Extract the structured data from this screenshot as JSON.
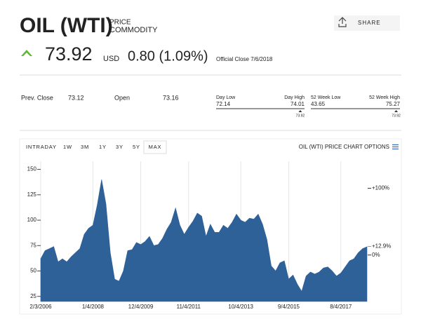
{
  "header": {
    "title": "OIL (WTI)",
    "label1": "PRICE",
    "label2": "COMMODITY",
    "share": "SHARE"
  },
  "quote": {
    "price": "73.92",
    "currency": "USD",
    "change": "0.80 (1.09%)",
    "close_note": "Official Close 7/6/2018"
  },
  "stats": {
    "prev_close_label": "Prev. Close",
    "prev_close": "73.12",
    "open_label": "Open",
    "open": "73.16",
    "day_range": {
      "low_label": "Day Low",
      "high_label": "Day High",
      "low": 72.14,
      "high": 74.01,
      "current": 73.92
    },
    "week52_range": {
      "low_label": "52 Week Low",
      "high_label": "52 Week High",
      "low": 43.65,
      "high": 75.27,
      "current": 73.92
    }
  },
  "tabs": {
    "items": [
      "INTRADAY",
      "1W",
      "3M",
      "1Y",
      "3Y",
      "5Y",
      "MAX"
    ],
    "selected": 6,
    "options": "OIL (WTI) PRICE CHART OPTIONS"
  },
  "chart_data": {
    "type": "area",
    "color": "#2f6199",
    "grid": true,
    "categories": [
      "2/3/2006",
      null,
      null,
      null,
      null,
      null,
      null,
      null,
      null,
      null,
      null,
      null,
      "1/4/2008",
      null,
      null,
      null,
      null,
      null,
      null,
      null,
      null,
      null,
      null,
      "12/4/2009",
      null,
      null,
      null,
      null,
      null,
      null,
      null,
      null,
      null,
      null,
      "11/4/2011",
      null,
      null,
      null,
      null,
      null,
      null,
      null,
      null,
      null,
      null,
      null,
      "10/4/2013",
      null,
      null,
      null,
      null,
      null,
      null,
      null,
      null,
      null,
      null,
      "9/4/2015",
      null,
      null,
      null,
      null,
      null,
      null,
      null,
      null,
      null,
      null,
      null,
      "8/4/2017",
      null,
      null,
      null,
      null,
      null,
      null
    ],
    "values": [
      62,
      70,
      72,
      74,
      59,
      62,
      59,
      64,
      68,
      72,
      86,
      92,
      95,
      115,
      140,
      116,
      68,
      42,
      40,
      50,
      70,
      71,
      78,
      76,
      79,
      84,
      75,
      76,
      82,
      91,
      98,
      112,
      95,
      86,
      93,
      99,
      107,
      104,
      84,
      96,
      88,
      88,
      95,
      92,
      98,
      106,
      100,
      98,
      102,
      101,
      106,
      96,
      81,
      55,
      50,
      58,
      60,
      42,
      46,
      37,
      30,
      45,
      49,
      47,
      49,
      53,
      54,
      50,
      45,
      48,
      54,
      60,
      62,
      68,
      72,
      73.92
    ],
    "ylim": [
      20,
      158
    ],
    "yticks": [
      25,
      50,
      75,
      100,
      125,
      150
    ],
    "y2lim": [
      -69.6,
      140.5
    ],
    "y2ticks": [
      {
        "value": 100,
        "label": "+100%"
      },
      {
        "value": 12.9,
        "label": "+12.9%"
      },
      {
        "value": 0,
        "label": "0%"
      }
    ],
    "y2tick_colors": [
      "#333333",
      "#6cbf3a",
      "#333333"
    ]
  }
}
